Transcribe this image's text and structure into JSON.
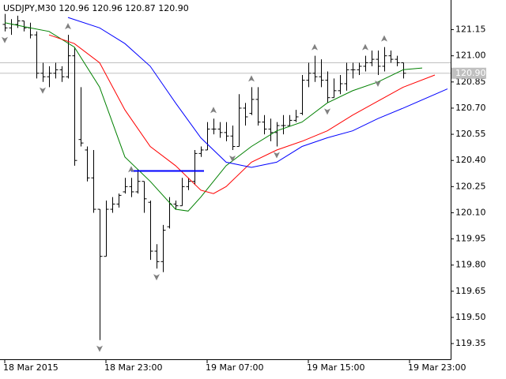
{
  "chart_data": {
    "type": "ohlc",
    "title": "USDJPY,M30  120.96 120.96 120.87 120.90",
    "open": [
      121.18,
      121.16,
      121.18,
      121.2,
      121.16,
      121.12,
      120.9,
      120.88,
      120.9,
      120.92,
      120.88,
      121.0,
      120.52,
      120.46,
      120.3,
      120.12,
      119.85,
      120.12,
      120.15,
      120.22,
      120.25,
      120.22,
      120.28,
      120.16,
      119.88,
      119.82,
      120.02,
      120.15,
      120.14,
      120.25,
      120.28,
      120.44,
      120.46,
      120.58,
      120.58,
      120.56,
      120.54,
      120.48,
      120.7,
      120.67,
      120.75,
      120.62,
      120.58,
      120.56,
      120.6,
      120.6,
      120.63,
      120.67,
      120.86,
      120.9,
      120.88,
      120.86,
      120.76,
      120.8,
      120.84,
      120.92,
      120.92,
      120.94,
      120.96,
      120.98,
      120.94,
      121.0,
      120.98,
      120.96
    ],
    "high": [
      121.24,
      121.21,
      121.23,
      121.2,
      121.19,
      121.14,
      120.96,
      120.94,
      120.96,
      120.94,
      121.12,
      121.05,
      120.82,
      120.48,
      120.46,
      120.12,
      120.17,
      120.19,
      120.21,
      120.3,
      120.3,
      120.35,
      120.28,
      120.17,
      119.92,
      120.03,
      120.19,
      120.17,
      120.3,
      120.3,
      120.46,
      120.48,
      120.62,
      120.64,
      120.62,
      120.62,
      120.6,
      120.78,
      120.73,
      120.82,
      120.82,
      120.66,
      120.64,
      120.62,
      120.66,
      120.66,
      120.69,
      120.89,
      120.96,
      121.0,
      120.98,
      120.91,
      120.87,
      120.89,
      120.96,
      120.96,
      120.96,
      121.0,
      121.03,
      121.03,
      121.05,
      121.03,
      121.0,
      120.96
    ],
    "low": [
      121.14,
      121.12,
      121.16,
      121.14,
      121.1,
      120.87,
      120.85,
      120.82,
      120.87,
      120.85,
      120.87,
      120.37,
      120.48,
      120.28,
      120.1,
      119.37,
      119.85,
      120.1,
      120.13,
      120.21,
      120.19,
      120.21,
      120.1,
      119.83,
      119.78,
      119.76,
      120.01,
      120.12,
      120.14,
      120.23,
      120.26,
      120.42,
      120.46,
      120.55,
      120.53,
      120.51,
      120.46,
      120.48,
      120.6,
      120.66,
      120.6,
      120.55,
      120.51,
      120.48,
      120.55,
      120.6,
      120.62,
      120.66,
      120.82,
      120.85,
      120.82,
      120.73,
      120.76,
      120.78,
      120.8,
      120.87,
      120.89,
      120.91,
      120.94,
      120.89,
      120.91,
      120.96,
      120.94,
      120.87
    ],
    "close": [
      121.16,
      121.18,
      121.2,
      121.16,
      121.12,
      120.9,
      120.88,
      120.9,
      120.92,
      120.88,
      121.0,
      120.4,
      120.5,
      120.3,
      120.12,
      119.85,
      120.12,
      120.15,
      120.2,
      120.25,
      120.22,
      120.28,
      120.18,
      119.88,
      119.82,
      120.0,
      120.15,
      120.14,
      120.25,
      120.28,
      120.44,
      120.46,
      120.58,
      120.58,
      120.56,
      120.54,
      120.48,
      120.7,
      120.65,
      120.75,
      120.62,
      120.58,
      120.56,
      120.6,
      120.6,
      120.63,
      120.65,
      120.86,
      120.9,
      120.88,
      120.86,
      120.76,
      120.8,
      120.84,
      120.92,
      120.92,
      120.94,
      120.96,
      120.98,
      120.94,
      121.0,
      120.98,
      120.96,
      120.9
    ],
    "bar_color": "#000000",
    "series": [
      {
        "color": "#008000",
        "x": [
          0,
          4,
          7,
          11,
          15,
          19,
          23,
          27,
          29,
          31,
          35,
          39,
          43,
          47,
          51,
          55,
          59,
          63,
          66
        ],
        "values": [
          121.19,
          121.16,
          121.14,
          121.05,
          120.82,
          120.42,
          120.28,
          120.12,
          120.11,
          120.19,
          120.37,
          120.48,
          120.57,
          120.62,
          120.73,
          120.8,
          120.85,
          120.92,
          120.93
        ]
      },
      {
        "color": "#ff0000",
        "x": [
          7,
          11,
          15,
          19,
          23,
          27,
          31,
          33,
          35,
          39,
          43,
          47,
          51,
          55,
          59,
          63,
          68
        ],
        "values": [
          121.12,
          121.07,
          120.96,
          120.69,
          120.48,
          120.37,
          120.23,
          120.21,
          120.25,
          120.39,
          120.46,
          120.51,
          120.57,
          120.66,
          120.74,
          120.82,
          120.89
        ]
      },
      {
        "color": "#0000ff",
        "x": [
          10,
          15,
          19,
          23,
          27,
          31,
          35,
          39,
          43,
          47,
          51,
          55,
          59,
          63,
          70
        ],
        "values": [
          121.22,
          121.16,
          121.07,
          120.94,
          120.73,
          120.53,
          120.39,
          120.36,
          120.39,
          120.48,
          120.53,
          120.57,
          120.64,
          120.7,
          120.81
        ]
      }
    ],
    "fractals_up": [
      10,
      20,
      33,
      39,
      49,
      57,
      60
    ],
    "fractals_down": [
      0,
      6,
      15,
      24,
      36,
      43,
      51,
      59
    ],
    "fractal_color": "#808080",
    "hline": {
      "value": 120.34,
      "x": [
        20,
        31.5
      ],
      "color": "#0000ff"
    },
    "ask": 120.96,
    "bid": {
      "value": 120.9,
      "label": "120.90"
    },
    "xlim": [
      -0.75,
      70.5
    ],
    "ylim": [
      119.26,
      121.32
    ],
    "yticks": [
      121.15,
      {
        "value": 121,
        "label": "121.00"
      },
      120.85,
      {
        "value": 120.7,
        "label": "120.70"
      },
      120.55,
      {
        "value": 120.4,
        "label": "120.40"
      },
      120.25,
      {
        "value": 120.1,
        "label": "120.10"
      },
      119.95,
      {
        "value": 119.8,
        "label": "119.80"
      },
      119.65,
      {
        "value": 119.5,
        "label": "119.50"
      },
      119.35
    ],
    "xticks": [
      {
        "value": 0,
        "label": "18 Mar 2015"
      },
      {
        "value": 16,
        "label": "18 Mar 23:00"
      },
      {
        "value": 32,
        "label": "19 Mar 07:00"
      },
      {
        "value": 48,
        "label": "19 Mar 15:00"
      },
      {
        "value": 64,
        "label": "19 Mar 23:00"
      }
    ]
  }
}
